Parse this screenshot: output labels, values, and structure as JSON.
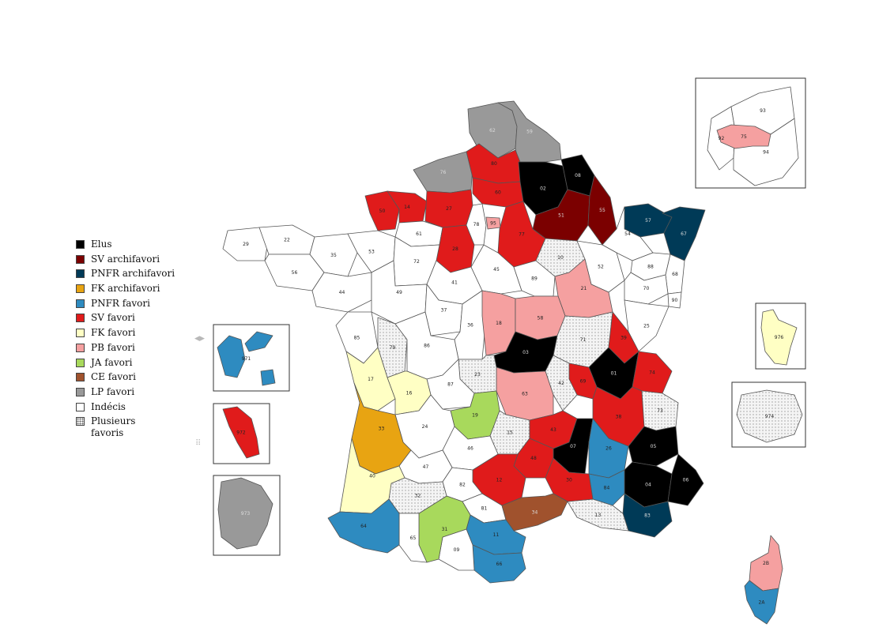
{
  "legend": [
    {
      "key": "elus",
      "label": "Elus",
      "color": "#000000"
    },
    {
      "key": "sv_archi",
      "label": "SV archifavori",
      "color": "#7b0000"
    },
    {
      "key": "pnfr_archi",
      "label": "PNFR archifavori",
      "color": "#003a57"
    },
    {
      "key": "fk_archi",
      "label": "FK archifavori",
      "color": "#e8a412"
    },
    {
      "key": "pnfr_fav",
      "label": "PNFR favori",
      "color": "#2e8bc0"
    },
    {
      "key": "sv_fav",
      "label": "SV favori",
      "color": "#e01b1b"
    },
    {
      "key": "fk_fav",
      "label": "FK favori",
      "color": "#ffffc4"
    },
    {
      "key": "pb_fav",
      "label": "PB favori",
      "color": "#f5a0a0"
    },
    {
      "key": "ja_fav",
      "label": "JA favori",
      "color": "#a8d95c"
    },
    {
      "key": "ce_fav",
      "label": "CE favori",
      "color": "#a0522d"
    },
    {
      "key": "lp_fav",
      "label": "LP favori",
      "color": "#999999"
    },
    {
      "key": "indecis",
      "label": "Indécis",
      "color": "#ffffff"
    },
    {
      "key": "plusieurs",
      "label": "Plusieurs\nfavoris",
      "color": "#e8e8e8"
    }
  ],
  "departments": [
    {
      "code": "62",
      "status": "lp_fav"
    },
    {
      "code": "59",
      "status": "lp_fav"
    },
    {
      "code": "76",
      "status": "lp_fav"
    },
    {
      "code": "80",
      "status": "sv_fav"
    },
    {
      "code": "60",
      "status": "sv_fav"
    },
    {
      "code": "02",
      "status": "elus"
    },
    {
      "code": "08",
      "status": "elus"
    },
    {
      "code": "51",
      "status": "sv_archi"
    },
    {
      "code": "55",
      "status": "sv_archi"
    },
    {
      "code": "57",
      "status": "pnfr_archi"
    },
    {
      "code": "67",
      "status": "pnfr_archi"
    },
    {
      "code": "54",
      "status": "indecis"
    },
    {
      "code": "88",
      "status": "indecis"
    },
    {
      "code": "68",
      "status": "indecis"
    },
    {
      "code": "50",
      "status": "sv_fav"
    },
    {
      "code": "14",
      "status": "sv_fav"
    },
    {
      "code": "27",
      "status": "sv_fav"
    },
    {
      "code": "28",
      "status": "sv_fav"
    },
    {
      "code": "77",
      "status": "sv_fav"
    },
    {
      "code": "95",
      "status": "pb_fav"
    },
    {
      "code": "78",
      "status": "indecis"
    },
    {
      "code": "61",
      "status": "indecis"
    },
    {
      "code": "29",
      "status": "indecis"
    },
    {
      "code": "22",
      "status": "indecis"
    },
    {
      "code": "56",
      "status": "indecis"
    },
    {
      "code": "35",
      "status": "indecis"
    },
    {
      "code": "53",
      "status": "indecis"
    },
    {
      "code": "72",
      "status": "indecis"
    },
    {
      "code": "44",
      "status": "indecis"
    },
    {
      "code": "49",
      "status": "indecis"
    },
    {
      "code": "85",
      "status": "indecis"
    },
    {
      "code": "79",
      "status": "plusieurs"
    },
    {
      "code": "41",
      "status": "indecis"
    },
    {
      "code": "45",
      "status": "indecis"
    },
    {
      "code": "37",
      "status": "indecis"
    },
    {
      "code": "36",
      "status": "indecis"
    },
    {
      "code": "86",
      "status": "indecis"
    },
    {
      "code": "89",
      "status": "indecis"
    },
    {
      "code": "10",
      "status": "plusieurs"
    },
    {
      "code": "52",
      "status": "indecis"
    },
    {
      "code": "70",
      "status": "indecis"
    },
    {
      "code": "90",
      "status": "indecis"
    },
    {
      "code": "25",
      "status": "indecis"
    },
    {
      "code": "21",
      "status": "pb_fav"
    },
    {
      "code": "18",
      "status": "pb_fav"
    },
    {
      "code": "58",
      "status": "pb_fav"
    },
    {
      "code": "71",
      "status": "plusieurs"
    },
    {
      "code": "39",
      "status": "sv_fav"
    },
    {
      "code": "03",
      "status": "elus"
    },
    {
      "code": "01",
      "status": "elus"
    },
    {
      "code": "74",
      "status": "sv_fav"
    },
    {
      "code": "69",
      "status": "sv_fav"
    },
    {
      "code": "42",
      "status": "plusieurs"
    },
    {
      "code": "63",
      "status": "pb_fav"
    },
    {
      "code": "23",
      "status": "plusieurs"
    },
    {
      "code": "87",
      "status": "indecis"
    },
    {
      "code": "17",
      "status": "fk_fav"
    },
    {
      "code": "16",
      "status": "fk_fav"
    },
    {
      "code": "19",
      "status": "ja_fav"
    },
    {
      "code": "33",
      "status": "fk_archi"
    },
    {
      "code": "40",
      "status": "fk_fav"
    },
    {
      "code": "24",
      "status": "indecis"
    },
    {
      "code": "15",
      "status": "plusieurs"
    },
    {
      "code": "43",
      "status": "sv_fav"
    },
    {
      "code": "38",
      "status": "sv_fav"
    },
    {
      "code": "73",
      "status": "plusieurs"
    },
    {
      "code": "07",
      "status": "elus"
    },
    {
      "code": "26",
      "status": "pnfr_fav"
    },
    {
      "code": "05",
      "status": "elus"
    },
    {
      "code": "04",
      "status": "elus"
    },
    {
      "code": "06",
      "status": "elus"
    },
    {
      "code": "84",
      "status": "pnfr_fav"
    },
    {
      "code": "83",
      "status": "pnfr_archi"
    },
    {
      "code": "13",
      "status": "plusieurs"
    },
    {
      "code": "30",
      "status": "sv_fav"
    },
    {
      "code": "48",
      "status": "sv_fav"
    },
    {
      "code": "12",
      "status": "sv_fav"
    },
    {
      "code": "46",
      "status": "indecis"
    },
    {
      "code": "47",
      "status": "indecis"
    },
    {
      "code": "82",
      "status": "indecis"
    },
    {
      "code": "81",
      "status": "indecis"
    },
    {
      "code": "34",
      "status": "ce_fav"
    },
    {
      "code": "11",
      "status": "pnfr_fav"
    },
    {
      "code": "66",
      "status": "pnfr_fav"
    },
    {
      "code": "09",
      "status": "indecis"
    },
    {
      "code": "31",
      "status": "ja_fav"
    },
    {
      "code": "32",
      "status": "plusieurs"
    },
    {
      "code": "65",
      "status": "indecis"
    },
    {
      "code": "64",
      "status": "pnfr_fav"
    },
    {
      "code": "2B",
      "status": "pb_fav"
    },
    {
      "code": "2A",
      "status": "pnfr_fav"
    },
    {
      "code": "75",
      "status": "pb_fav"
    },
    {
      "code": "92",
      "status": "indecis"
    },
    {
      "code": "93",
      "status": "indecis"
    },
    {
      "code": "94",
      "status": "indecis"
    },
    {
      "code": "971",
      "status": "pnfr_fav"
    },
    {
      "code": "972",
      "status": "sv_fav"
    },
    {
      "code": "973",
      "status": "lp_fav"
    },
    {
      "code": "976",
      "status": "fk_fav"
    },
    {
      "code": "974",
      "status": "plusieurs"
    }
  ]
}
